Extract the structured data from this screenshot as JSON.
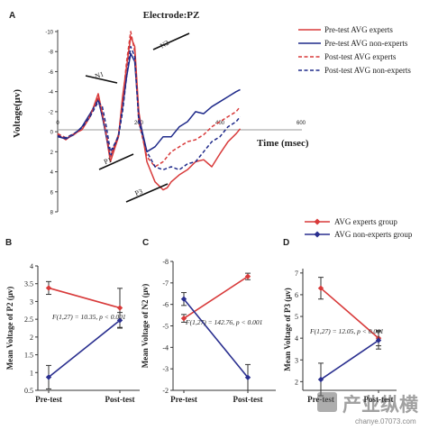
{
  "figure": {
    "panel_labels": [
      "A",
      "B",
      "C",
      "D"
    ],
    "watermark": {
      "text": "产业纵横",
      "url": "chanye.07073.com"
    },
    "legend_bottom": [
      "AVG experts group",
      "AVG non-experts group"
    ]
  },
  "chart_data": [
    {
      "type": "line",
      "panel": "A",
      "title": "Electrode:PZ",
      "xlabel": "Time (msec)",
      "ylabel": "Voltage(μv)",
      "x_ticks": [
        0,
        200,
        400,
        600
      ],
      "y_ticks": [
        -10,
        -8,
        -6,
        -4,
        -2,
        0,
        2,
        4,
        6,
        8
      ],
      "y_tick_labels": [
        "-10",
        "-8",
        "-6",
        "-4",
        "-2",
        "0",
        "2",
        "4",
        "6",
        "8"
      ],
      "xlim": [
        0,
        600
      ],
      "ylim": [
        -10,
        8
      ],
      "y_inverted": true,
      "component_labels": [
        "N1",
        "N2",
        "P1",
        "P3"
      ],
      "series": [
        {
          "name": "Pre-test AVG experts",
          "color": "#d83a3a",
          "dash": "solid",
          "x": [
            0,
            20,
            40,
            60,
            80,
            100,
            110,
            120,
            130,
            150,
            160,
            170,
            180,
            190,
            200,
            220,
            240,
            260,
            270,
            280,
            300,
            320,
            340,
            360,
            380,
            400,
            420,
            440,
            450
          ],
          "y": [
            0.3,
            0.8,
            0.2,
            -0.2,
            -1.5,
            -3.8,
            -1.8,
            0.5,
            3.0,
            0.5,
            -3.5,
            -6.5,
            -9.5,
            -8.5,
            -2.0,
            3.0,
            5.0,
            5.8,
            5.6,
            5.0,
            4.3,
            3.8,
            3.0,
            2.8,
            3.5,
            2.2,
            1.0,
            0.2,
            -0.3
          ]
        },
        {
          "name": "Pre-test AVG non-experts",
          "color": "#1f2a8a",
          "dash": "solid",
          "x": [
            0,
            20,
            40,
            60,
            80,
            100,
            110,
            120,
            130,
            150,
            160,
            170,
            180,
            190,
            200,
            220,
            240,
            260,
            280,
            300,
            320,
            340,
            360,
            380,
            400,
            420,
            440,
            450
          ],
          "y": [
            0.5,
            0.7,
            0.3,
            -0.5,
            -1.8,
            -3.2,
            -1.5,
            0.5,
            2.5,
            0.3,
            -2.5,
            -5.5,
            -7.8,
            -7.0,
            -1.5,
            2.0,
            1.5,
            0.5,
            0.5,
            -0.5,
            -1.0,
            -2.0,
            -1.8,
            -2.5,
            -3.0,
            -3.5,
            -4.0,
            -4.2
          ]
        },
        {
          "name": "Post-test AVG experts",
          "color": "#d83a3a",
          "dash": "dashed",
          "x": [
            0,
            20,
            40,
            60,
            80,
            100,
            110,
            120,
            130,
            150,
            160,
            170,
            180,
            190,
            200,
            220,
            240,
            260,
            280,
            300,
            320,
            340,
            360,
            380,
            400,
            420,
            440,
            450
          ],
          "y": [
            0.2,
            0.6,
            0.3,
            -0.3,
            -1.6,
            -3.5,
            -1.8,
            0.3,
            2.5,
            0.3,
            -3.0,
            -7.0,
            -10.0,
            -8.0,
            -1.0,
            2.5,
            3.5,
            3.0,
            2.0,
            1.5,
            1.0,
            0.8,
            0.3,
            -0.5,
            -1.0,
            -1.5,
            -2.0,
            -2.5
          ]
        },
        {
          "name": "Post-test AVG non-experts",
          "color": "#1f2a8a",
          "dash": "dashed",
          "x": [
            0,
            20,
            40,
            60,
            80,
            100,
            110,
            120,
            130,
            150,
            160,
            170,
            180,
            190,
            200,
            220,
            240,
            260,
            280,
            300,
            320,
            340,
            360,
            380,
            400,
            420,
            440,
            450
          ],
          "y": [
            0.4,
            0.6,
            0.2,
            -0.4,
            -1.5,
            -3.0,
            -2.5,
            -0.5,
            2.0,
            0.5,
            -2.0,
            -5.5,
            -8.5,
            -7.5,
            -1.0,
            2.0,
            3.5,
            3.8,
            3.5,
            3.8,
            3.2,
            3.0,
            2.0,
            1.0,
            0.5,
            -0.5,
            -1.0,
            -1.5
          ]
        }
      ]
    },
    {
      "type": "line",
      "panel": "B",
      "ylabel": "Mean Voltage of P2 (μv)",
      "categories": [
        "Pre-test",
        "Post-test"
      ],
      "y_ticks": [
        0.5,
        1,
        1.5,
        2,
        2.5,
        3,
        3.5,
        4
      ],
      "y_tick_labels": [
        "0.5",
        "1",
        "1.5",
        "2",
        "2.5",
        "3",
        "3.5",
        "4"
      ],
      "ylim": [
        0.5,
        4
      ],
      "annotation": "F(1,27) = 10.35, p < 0.001",
      "series": [
        {
          "name": "AVG experts group",
          "color": "#d83a3a",
          "values": [
            3.38,
            2.82
          ],
          "errors": [
            0.18,
            0.55
          ]
        },
        {
          "name": "AVG non-experts group",
          "color": "#2a2f8f",
          "values": [
            0.87,
            2.47
          ],
          "errors": [
            0.33,
            0.22
          ]
        }
      ]
    },
    {
      "type": "line",
      "panel": "C",
      "ylabel": "Mean Voltage of N2 (μv)",
      "categories": [
        "Pre-test",
        "Post-test"
      ],
      "y_ticks": [
        -8,
        -7,
        -6,
        -5,
        -4,
        -3,
        -2
      ],
      "y_tick_labels": [
        "-8",
        "-7",
        "-6",
        "-5",
        "-4",
        "-3",
        "-2"
      ],
      "ylim": [
        -8,
        -2
      ],
      "y_inverted": true,
      "annotation": "F(1,27) = 142.76, p < 0.001",
      "series": [
        {
          "name": "AVG experts group",
          "color": "#d83a3a",
          "values": [
            -5.35,
            -7.3
          ],
          "errors": [
            0.18,
            0.15
          ]
        },
        {
          "name": "AVG non-experts group",
          "color": "#2a2f8f",
          "values": [
            -6.25,
            -2.6
          ],
          "errors": [
            0.3,
            0.6
          ]
        }
      ]
    },
    {
      "type": "line",
      "panel": "D",
      "ylabel": "Mean Voltage of P3 (μv)",
      "categories": [
        "Pre-test",
        "Post-test"
      ],
      "y_ticks": [
        2,
        3,
        4,
        5,
        6,
        7
      ],
      "y_tick_labels": [
        "2",
        "3",
        "4",
        "5",
        "6",
        "7"
      ],
      "ylim": [
        1.6,
        7.2
      ],
      "annotation": "F(1,27) = 12.05, p < 0.001",
      "series": [
        {
          "name": "AVG experts group",
          "color": "#d83a3a",
          "values": [
            6.3,
            4.0
          ],
          "errors": [
            0.5,
            0.35
          ]
        },
        {
          "name": "AVG non-experts group",
          "color": "#2a2f8f",
          "values": [
            2.1,
            3.9
          ],
          "errors": [
            0.75,
            0.4
          ]
        }
      ]
    }
  ]
}
